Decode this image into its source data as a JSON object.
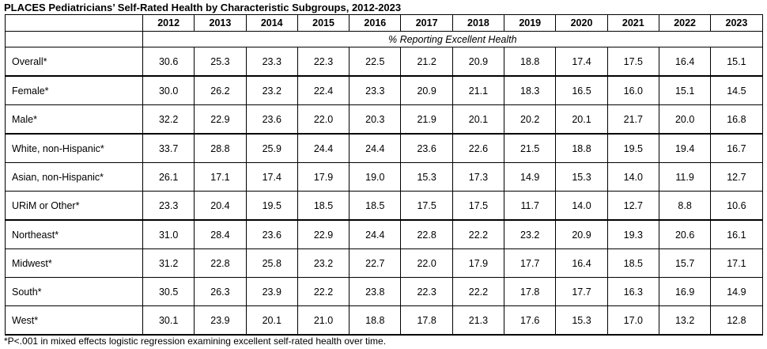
{
  "title": "PLACES Pediatricians’ Self-Rated Health by Characteristic Subgroups, 2012-2023",
  "subheader": "% Reporting Excellent Health",
  "footnote": "*P<.001 in mixed effects logistic regression examining excellent self-rated health over time.",
  "chart_data": {
    "type": "table",
    "title": "PLACES Pediatricians’ Self-Rated Health by Characteristic Subgroups, 2012-2023",
    "columns": [
      "2012",
      "2013",
      "2014",
      "2015",
      "2016",
      "2017",
      "2018",
      "2019",
      "2020",
      "2021",
      "2022",
      "2023"
    ],
    "rows": [
      {
        "label": "Overall*",
        "values": [
          "30.6",
          "25.3",
          "23.3",
          "22.3",
          "22.5",
          "21.2",
          "20.9",
          "18.8",
          "17.4",
          "17.5",
          "16.4",
          "15.1"
        ]
      },
      {
        "label": "Female*",
        "values": [
          "30.0",
          "26.2",
          "23.2",
          "22.4",
          "23.3",
          "20.9",
          "21.1",
          "18.3",
          "16.5",
          "16.0",
          "15.1",
          "14.5"
        ]
      },
      {
        "label": "Male*",
        "values": [
          "32.2",
          "22.9",
          "23.6",
          "22.0",
          "20.3",
          "21.9",
          "20.1",
          "20.2",
          "20.1",
          "21.7",
          "20.0",
          "16.8"
        ]
      },
      {
        "label": "White, non-Hispanic*",
        "values": [
          "33.7",
          "28.8",
          "25.9",
          "24.4",
          "24.4",
          "23.6",
          "22.6",
          "21.5",
          "18.8",
          "19.5",
          "19.4",
          "16.7"
        ]
      },
      {
        "label": "Asian, non-Hispanic*",
        "values": [
          "26.1",
          "17.1",
          "17.4",
          "17.9",
          "19.0",
          "15.3",
          "17.3",
          "14.9",
          "15.3",
          "14.0",
          "11.9",
          "12.7"
        ]
      },
      {
        "label": "URiM or Other*",
        "values": [
          "23.3",
          "20.4",
          "19.5",
          "18.5",
          "18.5",
          "17.5",
          "17.5",
          "11.7",
          "14.0",
          "12.7",
          "8.8",
          "10.6"
        ]
      },
      {
        "label": "Northeast*",
        "values": [
          "31.0",
          "28.4",
          "23.6",
          "22.9",
          "24.4",
          "22.8",
          "22.2",
          "23.2",
          "20.9",
          "19.3",
          "20.6",
          "16.1"
        ]
      },
      {
        "label": "Midwest*",
        "values": [
          "31.2",
          "22.8",
          "25.8",
          "23.2",
          "22.7",
          "22.0",
          "17.9",
          "17.7",
          "16.4",
          "18.5",
          "15.7",
          "17.1"
        ]
      },
      {
        "label": "South*",
        "values": [
          "30.5",
          "26.3",
          "23.9",
          "22.2",
          "23.8",
          "22.3",
          "22.2",
          "17.8",
          "17.7",
          "16.3",
          "16.9",
          "14.9"
        ]
      },
      {
        "label": "West*",
        "values": [
          "30.1",
          "23.9",
          "20.1",
          "21.0",
          "18.8",
          "17.8",
          "21.3",
          "17.6",
          "15.3",
          "17.0",
          "13.2",
          "12.8"
        ]
      }
    ]
  }
}
